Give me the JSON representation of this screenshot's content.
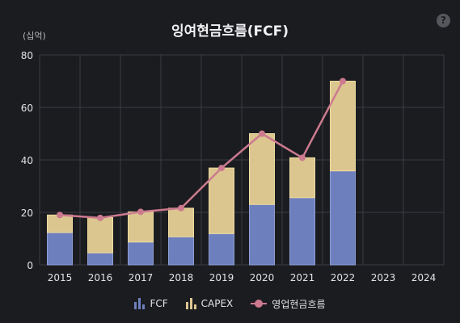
{
  "header": {
    "title": "잉여현금흐름(FCF)",
    "help": "?",
    "unit": "(십억)"
  },
  "colors": {
    "fcf_fill": "#6e7fbd",
    "fcf_stroke": "#8e9ed6",
    "capex_fill": "#dcc690",
    "capex_stroke": "#eedc9f",
    "line": "#cc7a8f",
    "grid": "#3a3c42"
  },
  "legend": [
    {
      "label": "FCF",
      "icon": "bar-chart-icon"
    },
    {
      "label": "CAPEX",
      "icon": "bar-chart-icon"
    },
    {
      "label": "영업현금흐름",
      "icon": "line-marker-icon"
    }
  ],
  "chart_data": {
    "type": "bar",
    "stacked": true,
    "title": "잉여현금흐름(FCF)",
    "ylabel": "(십억)",
    "ylim": [
      0,
      80
    ],
    "yticks": [
      0,
      20,
      40,
      60,
      80
    ],
    "grid": true,
    "legend_position": "bottom",
    "categories": [
      "2015",
      "2016",
      "2017",
      "2018",
      "2019",
      "2020",
      "2021",
      "2022",
      "2023",
      "2024"
    ],
    "series": [
      {
        "name": "FCF",
        "type": "bar",
        "values": [
          12.3,
          4.6,
          8.7,
          10.7,
          11.9,
          23.0,
          25.6,
          35.8,
          null,
          null
        ]
      },
      {
        "name": "CAPEX",
        "type": "bar",
        "values": [
          6.7,
          13.4,
          11.5,
          10.9,
          25.0,
          27.0,
          15.2,
          34.2,
          null,
          null
        ]
      },
      {
        "name": "영업현금흐름",
        "type": "line",
        "values": [
          19.0,
          17.9,
          20.2,
          21.6,
          36.9,
          50.0,
          40.8,
          70.0,
          null,
          null
        ]
      }
    ]
  }
}
